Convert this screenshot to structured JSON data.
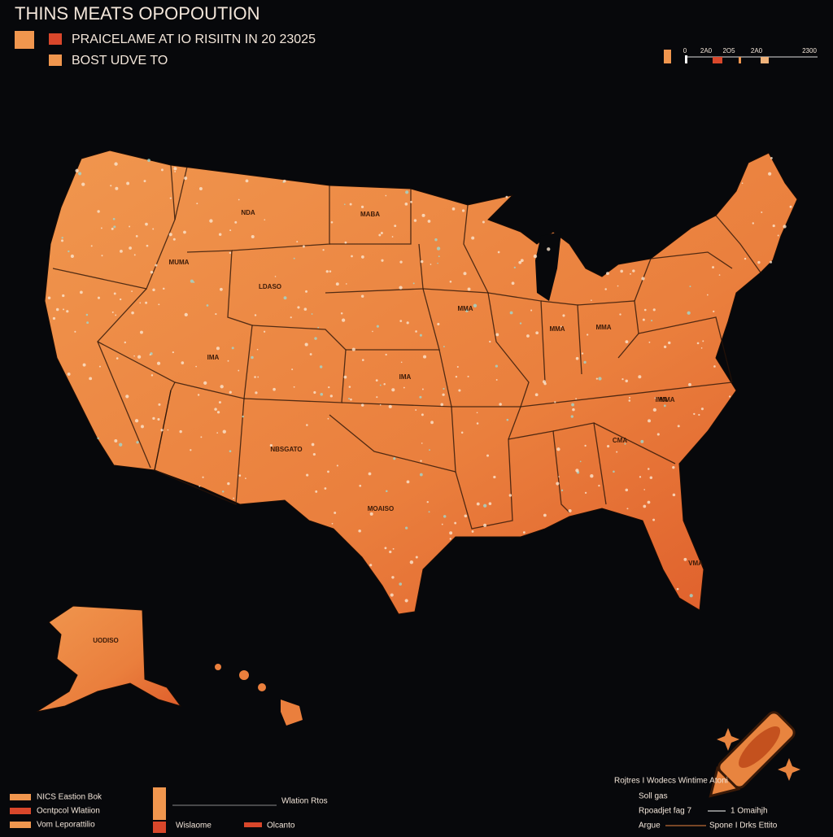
{
  "header": {
    "title": "THINS MEATS OPOPOUTION",
    "legend": [
      "PRAICELAME AT IO RISIITN IN 20 23025",
      "BOST UDVE TO"
    ]
  },
  "scale": {
    "labels": [
      "0",
      "2A0",
      "2O5",
      "2A0",
      "2300"
    ]
  },
  "map": {
    "state_labels": [
      "NDA",
      "MABA",
      "MUMA",
      "LDASO",
      "MMA",
      "IMA",
      "MMA",
      "IMA",
      "NBSGATO",
      "MOAISO",
      "MMA",
      "MMA",
      "CMA",
      "VMA",
      "IMA",
      "UODISO"
    ]
  },
  "footer": {
    "left_legend": [
      "NICS Eastion Bok",
      "Ocntpcol Wlatiion",
      "Vom Leporattilio"
    ],
    "middle_legend": [
      "Wlation Rtos",
      "Wislaome",
      "Olcanto"
    ],
    "right_notes": [
      "Rojtres I Wodecs Wintime Atoni",
      "Soll gas",
      "Rpoadjet fag 7",
      "1 Omaihjh",
      "Argue",
      "Spone I Drks Ettito"
    ]
  }
}
